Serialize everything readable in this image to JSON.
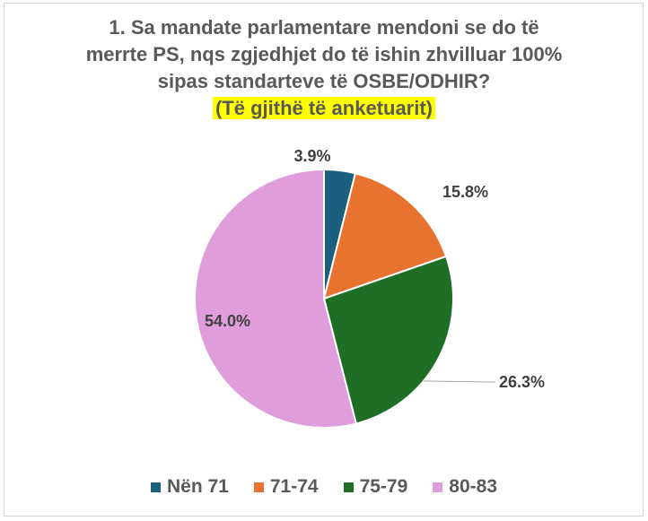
{
  "chart_data": {
    "type": "pie",
    "title_lines": [
      "1. Sa mandate parlamentare mendoni se do të",
      "merrte PS, nqs zgjedhjet do të ishin zhvilluar 100%",
      "sipas standarteve të OSBE/ODHIR?"
    ],
    "subtitle": "(Të gjithë të anketuarit)",
    "categories": [
      "Nën 71",
      "71-74",
      "75-79",
      "80-83"
    ],
    "values": [
      3.9,
      15.8,
      26.3,
      54.0
    ],
    "value_labels": [
      "3.9%",
      "15.8%",
      "26.3%",
      "54.0%"
    ],
    "colors": [
      "#1b5e7e",
      "#e87331",
      "#1f6e26",
      "#e09ddb"
    ],
    "start_angle": "12 o'clock",
    "direction": "clockwise",
    "legend_position": "bottom"
  }
}
